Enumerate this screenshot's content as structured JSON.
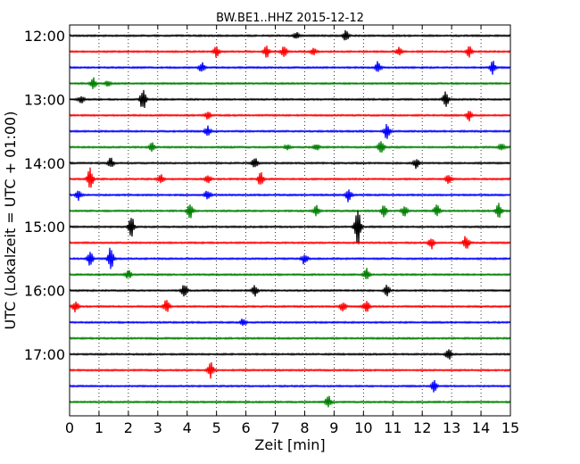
{
  "chart_data": {
    "type": "line",
    "title": "BW.BE1..HHZ 2015-12-12",
    "xlabel": "Zeit  [min]",
    "ylabel": "UTC (Lokalzeit = UTC + 01:00)",
    "xlim": [
      0,
      15
    ],
    "x_ticks": [
      0,
      1,
      2,
      3,
      4,
      5,
      6,
      7,
      8,
      9,
      10,
      11,
      12,
      13,
      14,
      15
    ],
    "x_tick_labels": [
      "0",
      "1",
      "2",
      "3",
      "4",
      "5",
      "6",
      "7",
      "8",
      "9",
      "10",
      "11",
      "12",
      "13",
      "14",
      "15"
    ],
    "y_tick_labels": [
      "12:00",
      "13:00",
      "14:00",
      "15:00",
      "16:00",
      "17:00"
    ],
    "y_tick_rows": [
      0,
      4,
      8,
      12,
      16,
      20
    ],
    "grid": {
      "x": true,
      "style": "dotted"
    },
    "row_colors": [
      "#000000",
      "#ff0000",
      "#0000ff",
      "#008000"
    ],
    "traces": [
      {
        "time": "12:00",
        "color": "#000000",
        "events": [
          {
            "t": 7.7,
            "a": 4
          },
          {
            "t": 9.4,
            "a": 6
          }
        ]
      },
      {
        "time": "12:15",
        "color": "#ff0000",
        "events": [
          {
            "t": 5.0,
            "a": 6
          },
          {
            "t": 6.7,
            "a": 7
          },
          {
            "t": 7.3,
            "a": 6
          },
          {
            "t": 8.3,
            "a": 5
          },
          {
            "t": 11.2,
            "a": 5
          },
          {
            "t": 13.6,
            "a": 6
          }
        ]
      },
      {
        "time": "12:30",
        "color": "#0000ff",
        "events": [
          {
            "t": 4.5,
            "a": 6
          },
          {
            "t": 10.5,
            "a": 7
          },
          {
            "t": 14.4,
            "a": 8
          }
        ]
      },
      {
        "time": "12:45",
        "color": "#008000",
        "events": [
          {
            "t": 0.8,
            "a": 7
          },
          {
            "t": 1.3,
            "a": 3
          }
        ]
      },
      {
        "time": "13:00",
        "color": "#000000",
        "events": [
          {
            "t": 0.4,
            "a": 5
          },
          {
            "t": 2.5,
            "a": 14
          },
          {
            "t": 12.8,
            "a": 9
          }
        ]
      },
      {
        "time": "13:15",
        "color": "#ff0000",
        "events": [
          {
            "t": 4.7,
            "a": 5
          },
          {
            "t": 13.6,
            "a": 6
          }
        ]
      },
      {
        "time": "13:30",
        "color": "#0000ff",
        "events": [
          {
            "t": 4.7,
            "a": 6
          },
          {
            "t": 10.8,
            "a": 10
          }
        ]
      },
      {
        "time": "13:45",
        "color": "#008000",
        "events": [
          {
            "t": 2.8,
            "a": 5
          },
          {
            "t": 7.4,
            "a": 3
          },
          {
            "t": 8.4,
            "a": 4
          },
          {
            "t": 10.6,
            "a": 9
          },
          {
            "t": 14.7,
            "a": 4
          }
        ]
      },
      {
        "time": "14:00",
        "color": "#000000",
        "events": [
          {
            "t": 1.4,
            "a": 6
          },
          {
            "t": 6.3,
            "a": 6
          },
          {
            "t": 11.8,
            "a": 6
          }
        ]
      },
      {
        "time": "14:15",
        "color": "#ff0000",
        "events": [
          {
            "t": 0.7,
            "a": 14
          },
          {
            "t": 3.1,
            "a": 5
          },
          {
            "t": 4.7,
            "a": 5
          },
          {
            "t": 6.5,
            "a": 8
          },
          {
            "t": 12.9,
            "a": 6
          }
        ]
      },
      {
        "time": "14:30",
        "color": "#0000ff",
        "events": [
          {
            "t": 0.3,
            "a": 6
          },
          {
            "t": 4.7,
            "a": 6
          },
          {
            "t": 9.5,
            "a": 8
          }
        ]
      },
      {
        "time": "14:45",
        "color": "#008000",
        "events": [
          {
            "t": 4.1,
            "a": 9
          },
          {
            "t": 8.4,
            "a": 6
          },
          {
            "t": 10.7,
            "a": 7
          },
          {
            "t": 11.4,
            "a": 7
          },
          {
            "t": 12.5,
            "a": 8
          },
          {
            "t": 14.6,
            "a": 10
          }
        ]
      },
      {
        "time": "15:00",
        "color": "#000000",
        "events": [
          {
            "t": 2.1,
            "a": 12
          },
          {
            "t": 9.8,
            "a": 24
          }
        ]
      },
      {
        "time": "15:15",
        "color": "#ff0000",
        "events": [
          {
            "t": 12.3,
            "a": 7
          },
          {
            "t": 13.5,
            "a": 9
          }
        ]
      },
      {
        "time": "15:30",
        "color": "#0000ff",
        "events": [
          {
            "t": 0.7,
            "a": 9
          },
          {
            "t": 1.4,
            "a": 14
          },
          {
            "t": 8.0,
            "a": 7
          }
        ]
      },
      {
        "time": "15:45",
        "color": "#008000",
        "events": [
          {
            "t": 2.0,
            "a": 5
          },
          {
            "t": 10.1,
            "a": 7
          }
        ]
      },
      {
        "time": "16:00",
        "color": "#000000",
        "events": [
          {
            "t": 3.9,
            "a": 8
          },
          {
            "t": 6.3,
            "a": 6
          },
          {
            "t": 10.8,
            "a": 6
          }
        ]
      },
      {
        "time": "16:15",
        "color": "#ff0000",
        "events": [
          {
            "t": 0.2,
            "a": 7
          },
          {
            "t": 3.3,
            "a": 8
          },
          {
            "t": 9.3,
            "a": 6
          },
          {
            "t": 10.1,
            "a": 8
          }
        ]
      },
      {
        "time": "16:30",
        "color": "#0000ff",
        "events": [
          {
            "t": 5.9,
            "a": 4
          }
        ]
      },
      {
        "time": "16:45",
        "color": "#008000",
        "events": []
      },
      {
        "time": "17:00",
        "color": "#000000",
        "events": [
          {
            "t": 12.9,
            "a": 7
          }
        ]
      },
      {
        "time": "17:15",
        "color": "#ff0000",
        "events": [
          {
            "t": 4.8,
            "a": 9
          }
        ]
      },
      {
        "time": "17:30",
        "color": "#0000ff",
        "events": [
          {
            "t": 12.4,
            "a": 7
          }
        ]
      },
      {
        "time": "17:45",
        "color": "#008000",
        "events": [
          {
            "t": 8.8,
            "a": 7
          }
        ]
      }
    ]
  }
}
